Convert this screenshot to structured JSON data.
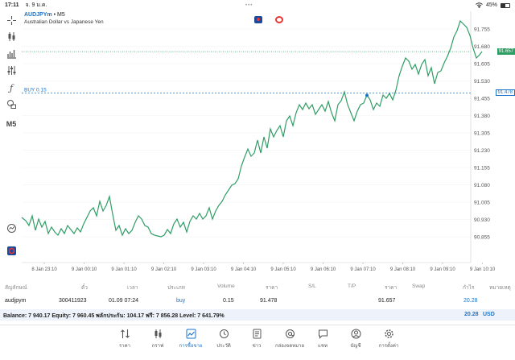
{
  "status_bar": {
    "time": "17:11",
    "date": "จ. 9 ม.ค.",
    "battery": "45%",
    "battery_level": 0.45
  },
  "chart": {
    "symbol": "AUDJPYm",
    "separator": "•",
    "timeframe": "M5",
    "description": "Australian Dollar vs Japanese Yen",
    "buy_label": "BUY 0.15",
    "current_price": "91.657",
    "buy_price": "91.478",
    "price_axis": [
      "91.755",
      "91.680",
      "91.605",
      "91.530",
      "91.455",
      "91.380",
      "91.305",
      "91.230",
      "91.155",
      "91.080",
      "91.005",
      "90.930",
      "90.855"
    ],
    "time_axis": [
      "8 Jan 23:10",
      "9 Jan 00:10",
      "9 Jan 01:10",
      "9 Jan 02:10",
      "9 Jan 03:10",
      "9 Jan 04:10",
      "9 Jan 05:10",
      "9 Jan 06:10",
      "9 Jan 07:10",
      "9 Jan 08:10",
      "9 Jan 09:10",
      "9 Jan 10:10"
    ],
    "colors": {
      "line": "#2f9e64",
      "buy": "#1a73c8",
      "grid": "#f0f0f0"
    }
  },
  "toolbar": {
    "m5_label": "M5"
  },
  "table": {
    "headers": [
      "สัญลักษณ์",
      "ตั๋ว",
      "เวลา",
      "ประเภท",
      "Volume",
      "ราคา",
      "S/L",
      "T/P",
      "ราคา",
      "Swap",
      "กำไร",
      "หมายเหตุ"
    ],
    "row": {
      "symbol": "audjpym",
      "ticket": "300411923",
      "time": "01.09 07:24",
      "type": "buy",
      "volume": "0.15",
      "open_price": "91.478",
      "current_price": "91.657",
      "profit": "20.28"
    },
    "balance_text": "Balance: 7 940.17 Equity: 7 960.45 พลักประกัน: 104.17 ฟรี: 7 856.28 Level: 7 641.79%",
    "total_profit": "20.28",
    "currency": "USD"
  },
  "bottom_nav": [
    {
      "label": "ราคา",
      "icon": "quotes-icon"
    },
    {
      "label": "กราฟ",
      "icon": "chart-candles-icon"
    },
    {
      "label": "การซื้อขาย",
      "icon": "trade-icon",
      "active": true
    },
    {
      "label": "ประวัติ",
      "icon": "history-icon"
    },
    {
      "label": "ข่าว",
      "icon": "news-icon"
    },
    {
      "label": "กล่องจดหมาย",
      "icon": "mailbox-icon"
    },
    {
      "label": "แชท",
      "icon": "chat-icon"
    },
    {
      "label": "บัญชี",
      "icon": "account-icon"
    },
    {
      "label": "การตั้งค่า",
      "icon": "settings-icon"
    }
  ]
}
